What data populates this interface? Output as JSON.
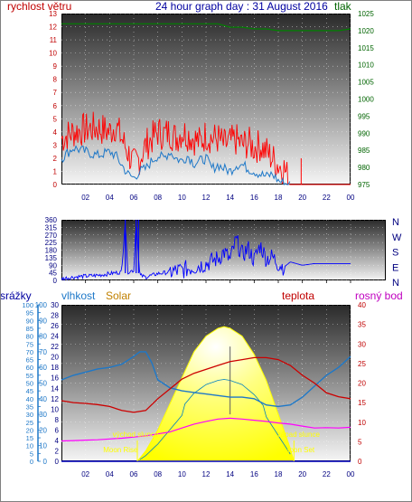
{
  "header": {
    "left_label": "rychlost větru",
    "title": "24 hour graph day : 31 August 2016",
    "right_label": "tlak"
  },
  "colors": {
    "wind": "#ff0000",
    "gust": "#1e78c8",
    "pressure": "#008000",
    "direction": "#0000ff",
    "rain": "#0000c0",
    "humidity": "#1e78c8",
    "solar": "#ffff00",
    "temperature": "#cc0000",
    "dewpoint": "#ff00ff",
    "axis_left_top": "#c00000",
    "axis_right_top": "#006400",
    "axis_mid": "#000080",
    "axis_bottom_left": "#1e78c8",
    "axis_bottom_right": "#c00000"
  },
  "chart_data": [
    {
      "type": "line",
      "name": "wind-and-pressure",
      "x_ticks": [
        "02",
        "04",
        "06",
        "08",
        "10",
        "12",
        "14",
        "16",
        "18",
        "20",
        "22",
        "00"
      ],
      "y_left": {
        "label": "rychlost větru",
        "min": 0,
        "max": 13,
        "ticks": [
          0,
          1,
          2,
          3,
          4,
          5,
          6,
          7,
          8,
          9,
          10,
          11,
          12,
          13
        ]
      },
      "y_right": {
        "label": "tlak",
        "min": 975,
        "max": 1025,
        "ticks": [
          975,
          980,
          985,
          990,
          995,
          1000,
          1005,
          1010,
          1015,
          1020,
          1025
        ]
      },
      "series": [
        {
          "name": "wind",
          "axis": "left",
          "x": [
            0,
            1,
            2,
            3,
            4,
            4.5,
            5,
            5.5,
            6,
            6.5,
            7,
            7.5,
            8,
            8.5,
            9,
            9.5,
            10,
            10.5,
            11,
            11.5,
            12,
            12.5,
            13,
            13.5,
            14,
            14.5,
            15,
            15.5,
            16,
            16.5,
            17,
            17.5,
            18,
            18.5,
            19,
            20,
            21,
            22,
            23,
            24
          ],
          "y": [
            3.5,
            4,
            4.2,
            4.3,
            4,
            4.5,
            3.5,
            2.5,
            1.5,
            2,
            3,
            3.5,
            4,
            3.8,
            4,
            3.5,
            4,
            3.8,
            3.5,
            3.2,
            3.8,
            3.5,
            3.5,
            3,
            3.2,
            3.4,
            3,
            3.2,
            2.8,
            3,
            2.5,
            2,
            1.5,
            1.2,
            0,
            0,
            0,
            0,
            0,
            0
          ]
        },
        {
          "name": "gust",
          "axis": "left",
          "x": [
            0,
            1,
            2,
            3,
            4,
            4.5,
            5,
            5.5,
            6,
            6.5,
            7,
            7.5,
            8,
            8.5,
            9,
            9.5,
            10,
            10.5,
            11,
            11.5,
            12,
            12.5,
            13,
            13.5,
            14,
            14.5,
            15,
            15.5,
            16,
            16.5,
            17,
            17.5,
            18,
            18.5,
            19
          ],
          "y": [
            2,
            2.8,
            2.5,
            2.2,
            2.5,
            2.2,
            1.5,
            0.8,
            0.5,
            1,
            1.2,
            1.8,
            2.2,
            2,
            2.5,
            2,
            1.8,
            2.2,
            1.6,
            1.8,
            2,
            1.2,
            1.5,
            1.2,
            1,
            1.5,
            1.5,
            1.2,
            1,
            0.8,
            0.6,
            0.8,
            0.3,
            0.1,
            0
          ]
        },
        {
          "name": "pressure",
          "axis": "right",
          "x": [
            0,
            1,
            2,
            3,
            4,
            5,
            6,
            7,
            8,
            9,
            10,
            11,
            12,
            13,
            14,
            15,
            16,
            17,
            18,
            19,
            20,
            21,
            22,
            23,
            24
          ],
          "y": [
            1022,
            1022,
            1022,
            1022,
            1022,
            1022,
            1022,
            1022,
            1022,
            1022,
            1022,
            1022,
            1022,
            1022,
            1021,
            1021,
            1020.5,
            1020.5,
            1020,
            1020,
            1020,
            1020,
            1020,
            1020,
            1020.5
          ]
        }
      ]
    },
    {
      "type": "line",
      "name": "wind-direction",
      "x_ticks": [
        "02",
        "04",
        "06",
        "08",
        "10",
        "12",
        "14",
        "16",
        "18",
        "20",
        "22",
        "00"
      ],
      "y_left": {
        "min": 0,
        "max": 360,
        "ticks": [
          0,
          45,
          90,
          135,
          180,
          225,
          270,
          315,
          360
        ]
      },
      "y_right_labels": [
        "N",
        "W",
        "S",
        "E",
        "N"
      ],
      "series": [
        {
          "name": "direction",
          "x": [
            0,
            1,
            2,
            3,
            4,
            5,
            5.3,
            5.5,
            6,
            6.2,
            6.5,
            7,
            7.5,
            8,
            9,
            10,
            11,
            12,
            13,
            13.5,
            14,
            14.5,
            15,
            15.5,
            16,
            16.5,
            17,
            17.5,
            18,
            18.5,
            19,
            20,
            21,
            22,
            23,
            24
          ],
          "y": [
            10,
            20,
            25,
            30,
            40,
            50,
            360,
            50,
            60,
            360,
            30,
            20,
            30,
            40,
            50,
            60,
            80,
            100,
            130,
            170,
            120,
            240,
            150,
            190,
            120,
            210,
            130,
            140,
            100,
            80,
            110,
            90,
            100,
            100,
            100,
            100
          ]
        }
      ]
    },
    {
      "type": "line",
      "name": "humidity-solar-temperature",
      "x_ticks": [
        "02",
        "04",
        "06",
        "08",
        "10",
        "12",
        "14",
        "16",
        "18",
        "20",
        "22",
        "00"
      ],
      "y_left_rain": {
        "label": "srážky",
        "min": 0,
        "max": 100,
        "ticks": [
          0,
          5,
          10,
          15,
          20,
          25,
          30,
          35,
          40,
          45,
          50,
          55,
          60,
          65,
          70,
          75,
          80,
          85,
          90,
          95,
          100
        ]
      },
      "y_left_humidity": {
        "label": "vlhkost",
        "min": 0,
        "max": 100,
        "ticks": [
          0,
          10,
          20,
          30,
          40,
          50,
          60,
          70,
          80,
          90,
          100
        ]
      },
      "y_left_solar": {
        "label": "Solar",
        "min": 0,
        "max": 30,
        "ticks": [
          0,
          2,
          4,
          6,
          8,
          10,
          12,
          14,
          16,
          18,
          20,
          22,
          24,
          26,
          28,
          30
        ]
      },
      "y_right": {
        "label": "teplota / rosný bod",
        "min": 0,
        "max": 40,
        "ticks": [
          0,
          5,
          10,
          15,
          20,
          25,
          30,
          35,
          40
        ]
      },
      "legend": {
        "temperature": "teplota",
        "dewpoint": "rosný bod"
      },
      "annotations": [
        {
          "text": "východ slunce",
          "x": 6.3
        },
        {
          "text": "Moon Rise",
          "x": 5.8
        },
        {
          "text": "západ slunce",
          "x": 19.3
        },
        {
          "text": "Moon Set",
          "x": 19.8
        }
      ],
      "series": [
        {
          "name": "humidity",
          "axis": "humidity",
          "x": [
            0,
            1,
            2,
            3,
            4,
            5,
            6,
            6.5,
            7,
            7.5,
            8,
            9,
            10,
            11,
            12,
            13,
            14,
            15,
            16,
            17,
            18,
            19,
            20,
            21,
            22,
            23,
            24
          ],
          "y": [
            52,
            55,
            57,
            59,
            60,
            62,
            67,
            70,
            70,
            63,
            52,
            47,
            45,
            44,
            43,
            42,
            41,
            41,
            40,
            36,
            35,
            36,
            41,
            48,
            55,
            60,
            67
          ]
        },
        {
          "name": "temperature",
          "axis": "right",
          "x": [
            0,
            1,
            2,
            3,
            4,
            5,
            6,
            7,
            8,
            9,
            10,
            11,
            12,
            13,
            14,
            15,
            16,
            17,
            18,
            19,
            20,
            21,
            22,
            23,
            24
          ],
          "y": [
            15.5,
            15,
            14.8,
            14.5,
            14,
            13,
            12.5,
            13,
            16,
            18.5,
            21,
            22.5,
            23.5,
            24.5,
            25.5,
            26,
            26.5,
            26.5,
            26,
            24.5,
            22,
            20,
            17.5,
            16.5,
            16
          ]
        },
        {
          "name": "dewpoint",
          "axis": "right",
          "x": [
            0,
            1,
            2,
            3,
            4,
            5,
            6,
            7,
            8,
            9,
            10,
            11,
            12,
            13,
            14,
            15,
            16,
            17,
            18,
            19,
            20,
            21,
            22,
            23,
            24
          ],
          "y": [
            5.2,
            5.3,
            5.4,
            5.5,
            5.7,
            5.9,
            6.2,
            6.5,
            7,
            7.5,
            8.5,
            9.5,
            10.2,
            10.8,
            11,
            10.8,
            10.5,
            10.2,
            9.8,
            9.5,
            9,
            8.5,
            8.6,
            8.5,
            8.7
          ]
        },
        {
          "name": "solar",
          "axis": "solar",
          "x": [
            6.3,
            7,
            8,
            9,
            10,
            11,
            12,
            13,
            13.5,
            14,
            15,
            16,
            17,
            18,
            19,
            19.3
          ],
          "y": [
            0,
            2,
            6,
            11,
            16,
            21,
            24,
            25.5,
            25.8,
            25.5,
            24,
            20.5,
            15.5,
            9,
            2.5,
            0
          ]
        },
        {
          "name": "rain",
          "axis": "rain",
          "x": [
            0,
            24
          ],
          "y": [
            0,
            0
          ]
        }
      ]
    }
  ]
}
